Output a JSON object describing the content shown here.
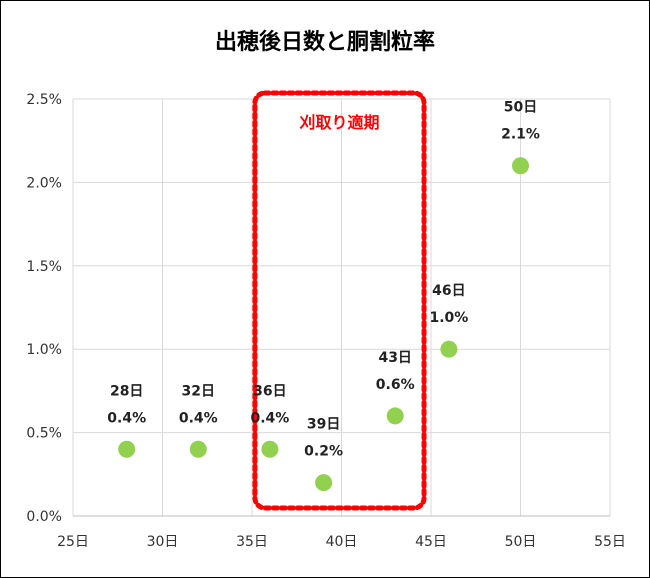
{
  "chart_data": {
    "type": "scatter",
    "title": "出穂後日数と胴割粒率",
    "xlabel": "",
    "ylabel": "",
    "xlim": [
      25,
      55
    ],
    "ylim": [
      0,
      2.5
    ],
    "x_ticks": [
      25,
      30,
      35,
      40,
      45,
      50,
      55
    ],
    "x_tick_labels": [
      "25日",
      "30日",
      "35日",
      "40日",
      "45日",
      "50日",
      "55日"
    ],
    "y_ticks": [
      0,
      0.5,
      1.0,
      1.5,
      2.0,
      2.5
    ],
    "y_tick_labels": [
      "0.0%",
      "0.5%",
      "1.0%",
      "1.5%",
      "2.0%",
      "2.5%"
    ],
    "grid": true,
    "legend": "none",
    "point_color": "#92d050",
    "points": [
      {
        "x": 28,
        "y": 0.4,
        "label_day": "28日",
        "label_value": "0.4%"
      },
      {
        "x": 32,
        "y": 0.4,
        "label_day": "32日",
        "label_value": "0.4%"
      },
      {
        "x": 36,
        "y": 0.4,
        "label_day": "36日",
        "label_value": "0.4%"
      },
      {
        "x": 39,
        "y": 0.2,
        "label_day": "39日",
        "label_value": "0.2%"
      },
      {
        "x": 43,
        "y": 0.6,
        "label_day": "43日",
        "label_value": "0.6%"
      },
      {
        "x": 46,
        "y": 1.0,
        "label_day": "46日",
        "label_value": "1.0%"
      },
      {
        "x": 50,
        "y": 2.1,
        "label_day": "50日",
        "label_value": "2.1%"
      }
    ],
    "annotation": {
      "text": "刈取り適期",
      "x_range": [
        35.5,
        44.5
      ],
      "y_range": [
        0,
        2.5
      ],
      "color": "#ff0000"
    }
  }
}
